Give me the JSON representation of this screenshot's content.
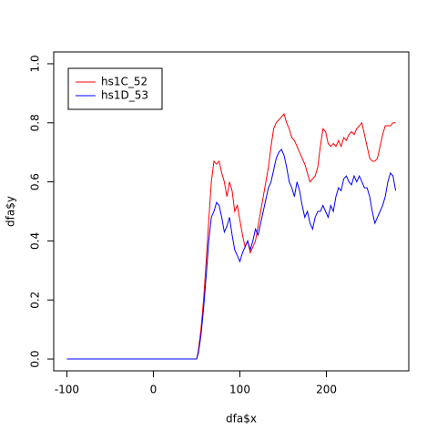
{
  "chart_data": {
    "type": "line",
    "x_label": "dfa$x",
    "y_label": "dfa$y",
    "x": [
      -100,
      50,
      52,
      55,
      58,
      61,
      64,
      67,
      70,
      73,
      76,
      79,
      82,
      85,
      88,
      91,
      94,
      97,
      100,
      103,
      106,
      109,
      112,
      115,
      118,
      121,
      124,
      127,
      130,
      133,
      136,
      139,
      142,
      145,
      148,
      151,
      154,
      157,
      160,
      163,
      166,
      169,
      172,
      175,
      178,
      181,
      184,
      187,
      190,
      193,
      196,
      199,
      202,
      205,
      208,
      211,
      214,
      217,
      220,
      223,
      226,
      229,
      232,
      235,
      238,
      241,
      244,
      247,
      250,
      253,
      256,
      259,
      262,
      265,
      268,
      271,
      274,
      277,
      280
    ],
    "series": [
      {
        "name": "hs1C_52",
        "color": "#ff0000",
        "values": [
          0,
          0,
          0.03,
          0.1,
          0.2,
          0.33,
          0.47,
          0.6,
          0.67,
          0.66,
          0.67,
          0.63,
          0.6,
          0.55,
          0.6,
          0.57,
          0.5,
          0.52,
          0.47,
          0.42,
          0.38,
          0.4,
          0.36,
          0.38,
          0.4,
          0.45,
          0.5,
          0.55,
          0.6,
          0.65,
          0.72,
          0.78,
          0.8,
          0.81,
          0.82,
          0.83,
          0.8,
          0.78,
          0.75,
          0.74,
          0.72,
          0.7,
          0.68,
          0.66,
          0.63,
          0.6,
          0.61,
          0.62,
          0.65,
          0.72,
          0.78,
          0.77,
          0.73,
          0.72,
          0.73,
          0.72,
          0.74,
          0.72,
          0.75,
          0.74,
          0.76,
          0.77,
          0.76,
          0.78,
          0.79,
          0.8,
          0.76,
          0.72,
          0.68,
          0.67,
          0.67,
          0.68,
          0.72,
          0.76,
          0.79,
          0.79,
          0.79,
          0.8,
          0.8
        ]
      },
      {
        "name": "hs1D_53",
        "color": "#0000ff",
        "values": [
          0,
          0,
          0.02,
          0.08,
          0.17,
          0.28,
          0.4,
          0.48,
          0.5,
          0.53,
          0.52,
          0.48,
          0.43,
          0.45,
          0.48,
          0.42,
          0.37,
          0.35,
          0.33,
          0.36,
          0.38,
          0.4,
          0.37,
          0.4,
          0.44,
          0.42,
          0.46,
          0.5,
          0.54,
          0.58,
          0.6,
          0.64,
          0.68,
          0.7,
          0.71,
          0.69,
          0.65,
          0.6,
          0.58,
          0.55,
          0.6,
          0.57,
          0.52,
          0.48,
          0.5,
          0.46,
          0.44,
          0.48,
          0.5,
          0.5,
          0.52,
          0.5,
          0.48,
          0.52,
          0.5,
          0.55,
          0.58,
          0.57,
          0.61,
          0.62,
          0.6,
          0.59,
          0.62,
          0.6,
          0.62,
          0.6,
          0.58,
          0.58,
          0.55,
          0.5,
          0.46,
          0.48,
          0.5,
          0.52,
          0.55,
          0.6,
          0.63,
          0.62,
          0.57
        ]
      }
    ],
    "xlim": [
      -115.2,
      295.2
    ],
    "ylim": [
      -0.04,
      1.04
    ],
    "xticks": [
      -100,
      0,
      100,
      200
    ],
    "yticks": [
      {
        "value": 0,
        "label": "0.0"
      },
      {
        "value": 0.2,
        "label": "0.2"
      },
      {
        "value": 0.4,
        "label": "0.4"
      },
      {
        "value": 0.6,
        "label": "0.6"
      },
      {
        "value": 0.8,
        "label": "0.8"
      },
      {
        "value": 1,
        "label": "1.0"
      }
    ],
    "legend": "top-left"
  }
}
